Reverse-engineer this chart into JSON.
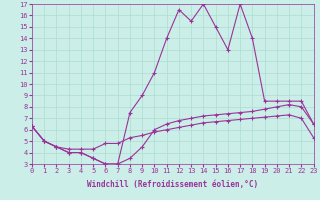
{
  "xlabel": "Windchill (Refroidissement éolien,°C)",
  "bg_color": "#cceee8",
  "line_color": "#993399",
  "x_hours": [
    0,
    1,
    2,
    3,
    4,
    5,
    6,
    7,
    8,
    9,
    10,
    11,
    12,
    13,
    14,
    15,
    16,
    17,
    18,
    19,
    20,
    21,
    22,
    23
  ],
  "line1_y": [
    6.3,
    5.0,
    4.5,
    4.3,
    4.3,
    4.3,
    4.8,
    4.8,
    5.3,
    5.5,
    5.8,
    6.0,
    6.2,
    6.4,
    6.6,
    6.7,
    6.8,
    6.9,
    7.0,
    7.1,
    7.2,
    7.3,
    7.0,
    5.3
  ],
  "line2_y": [
    6.3,
    5.0,
    4.5,
    4.0,
    4.0,
    3.5,
    3.0,
    3.0,
    3.5,
    4.5,
    6.0,
    6.5,
    6.8,
    7.0,
    7.2,
    7.3,
    7.4,
    7.5,
    7.6,
    7.8,
    8.0,
    8.2,
    8.0,
    6.5
  ],
  "line3_y": [
    6.3,
    5.0,
    4.5,
    4.0,
    4.0,
    3.5,
    3.0,
    3.0,
    7.5,
    9.0,
    11.0,
    14.0,
    16.5,
    15.5,
    17.0,
    15.0,
    13.0,
    17.0,
    14.0,
    8.5,
    8.5,
    8.5,
    8.5,
    6.5
  ],
  "ylim": [
    3,
    17
  ],
  "xlim": [
    0,
    23
  ],
  "yticks": [
    3,
    4,
    5,
    6,
    7,
    8,
    9,
    10,
    11,
    12,
    13,
    14,
    15,
    16,
    17
  ],
  "xticks": [
    0,
    1,
    2,
    3,
    4,
    5,
    6,
    7,
    8,
    9,
    10,
    11,
    12,
    13,
    14,
    15,
    16,
    17,
    18,
    19,
    20,
    21,
    22,
    23
  ],
  "grid_color": "#aaddcc",
  "tick_fontsize": 5.0,
  "xlabel_fontsize": 5.5
}
